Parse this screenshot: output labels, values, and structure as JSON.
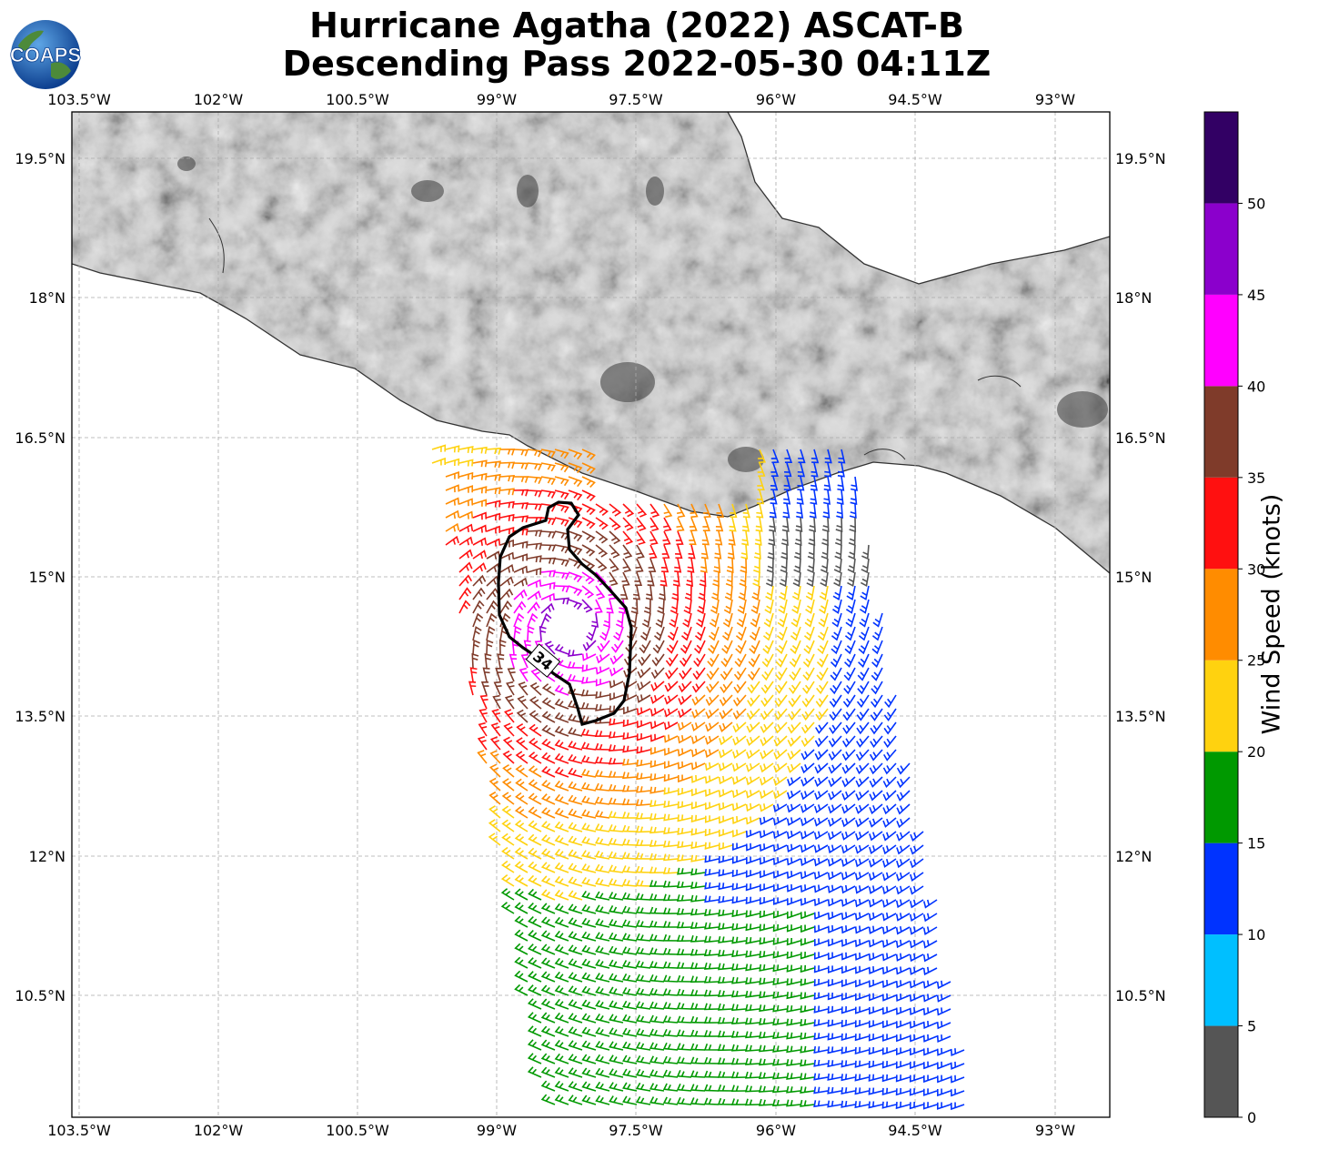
{
  "title_line1": "Hurricane Agatha (2022) ASCAT-B",
  "title_line2": "Descending Pass 2022-05-30 04:11Z",
  "logo_text": "COAPS",
  "lon_ticks": [
    "103.5°W",
    "102°W",
    "100.5°W",
    "99°W",
    "97.5°W",
    "96°W",
    "94.5°W",
    "93°W"
  ],
  "lat_ticks": [
    "19.5°N",
    "18°N",
    "16.5°N",
    "15°N",
    "13.5°N",
    "12°N",
    "10.5°N"
  ],
  "contour_label": "34",
  "colorbar": {
    "label": "Wind Speed (knots)",
    "ticks": [
      "0",
      "5",
      "10",
      "15",
      "20",
      "25",
      "30",
      "35",
      "40",
      "45",
      "50"
    ],
    "colors": [
      "#555555",
      "#00bfff",
      "#0033ff",
      "#009900",
      "#ffd20f",
      "#ff8c00",
      "#ff1010",
      "#7f3b2a",
      "#ff00ff",
      "#8b00cc",
      "#320064"
    ]
  },
  "map_extent": {
    "lon_min": -103.5,
    "lon_max": -92.4,
    "lat_min": 9.2,
    "lat_max": 20.0
  }
}
